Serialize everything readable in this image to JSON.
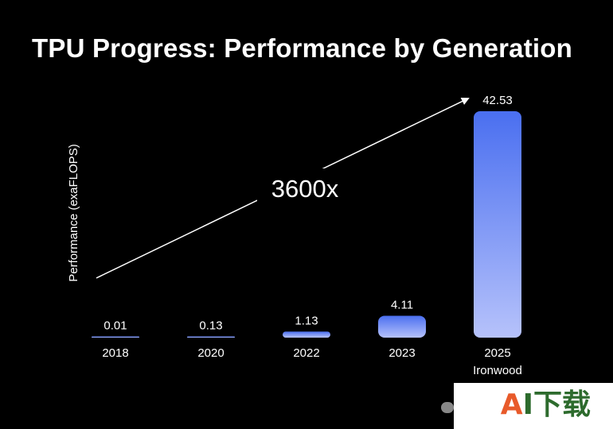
{
  "chart_data": {
    "type": "bar",
    "title": "TPU Progress: Performance by Generation",
    "ylabel": "Performance (exaFLOPS)",
    "xlabel": "",
    "categories": [
      "2018",
      "2020",
      "2022",
      "2023",
      "2025"
    ],
    "category_sublabels": [
      "",
      "",
      "",
      "",
      "Ironwood"
    ],
    "values": [
      0.01,
      0.13,
      1.13,
      4.11,
      42.53
    ],
    "value_labels": [
      "0.01",
      "0.13",
      "1.13",
      "4.11",
      "42.53"
    ],
    "ylim": [
      0,
      42.53
    ],
    "annotation": "3600x",
    "grid": false,
    "legend": "none",
    "colors": {
      "background": "#000000",
      "bar_top": "#4a6ff0",
      "bar_bottom": "#b6c2fb",
      "text": "#ffffff"
    }
  },
  "watermark": {
    "text_a": "A",
    "text_rest": "I下载"
  }
}
